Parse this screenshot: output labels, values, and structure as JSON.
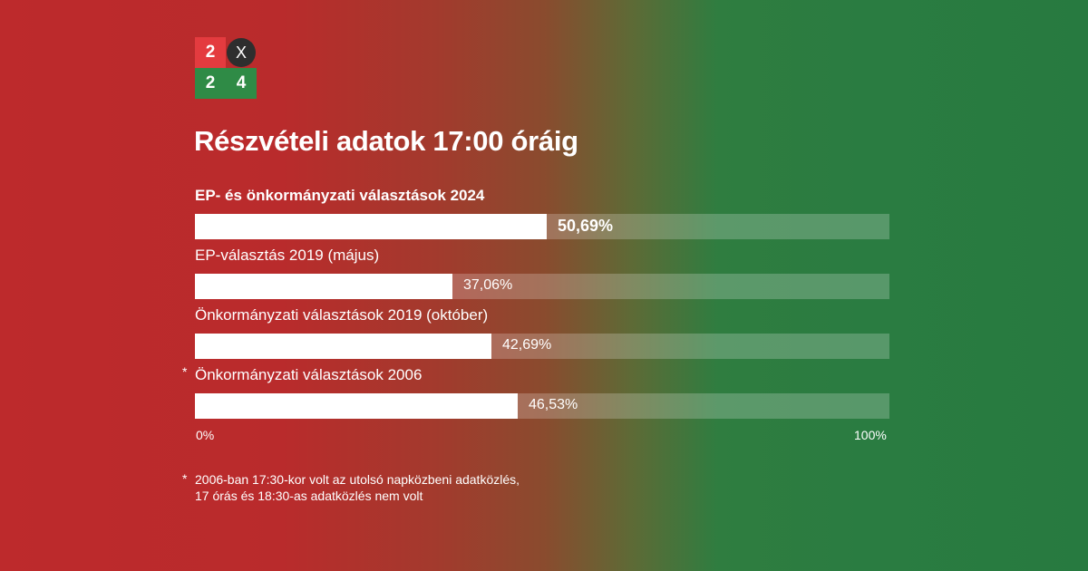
{
  "logo": {
    "top_left": "2",
    "top_right": "X",
    "bottom_left": "2",
    "bottom_right": "4"
  },
  "title": "Részvételi adatok 17:00 óráig",
  "chart_data": {
    "type": "bar",
    "orientation": "horizontal",
    "categories": [
      "EP- és önkormányzati választások 2024",
      "EP-választás 2019 (május)",
      "Önkormányzati választások 2019 (október)",
      "Önkormányzati választások 2006"
    ],
    "values": [
      50.69,
      37.06,
      42.69,
      46.53
    ],
    "value_labels": [
      "50,69%",
      "37,06%",
      "42,69%",
      "46,53%"
    ],
    "xlim": [
      0,
      100
    ],
    "tick_labels": [
      "0%",
      "100%"
    ],
    "asterisk_marks": [
      "",
      "",
      "",
      "*"
    ],
    "colors": {
      "bar": "#ffffff",
      "track": "rgba(255,255,255,0.22)"
    }
  },
  "footnote": {
    "mark": "*",
    "line1": "2006-ban 17:30-kor volt az utolsó napközbeni adatközlés,",
    "line2": "17 órás és 18:30-as adatközlés nem volt"
  }
}
